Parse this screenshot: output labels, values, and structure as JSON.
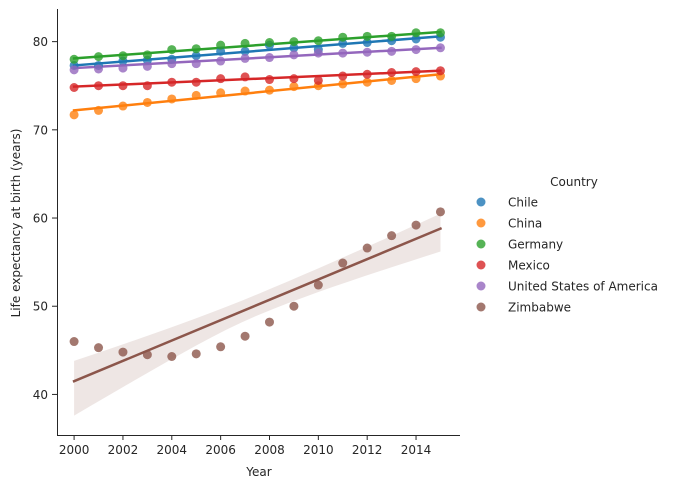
{
  "chart_data": {
    "type": "scatter",
    "xlabel": "Year",
    "ylabel": "Life expectancy at birth (years)",
    "xlim": [
      1999.3,
      2015.8
    ],
    "ylim": [
      35.4,
      83.7
    ],
    "xticks": [
      "2000",
      "2002",
      "2004",
      "2006",
      "2008",
      "2010",
      "2012",
      "2014"
    ],
    "yticks": [
      "40",
      "50",
      "60",
      "70",
      "80"
    ],
    "grid": false,
    "legend": {
      "title": "Country",
      "placement": "right"
    },
    "x": [
      2000,
      2001,
      2002,
      2003,
      2004,
      2005,
      2006,
      2007,
      2008,
      2009,
      2010,
      2011,
      2012,
      2013,
      2014,
      2015
    ],
    "series": [
      {
        "name": "Chile",
        "color": "#1f77b4",
        "values": [
          77.3,
          77.3,
          77.8,
          77.9,
          78.0,
          78.4,
          78.9,
          78.9,
          79.6,
          79.3,
          79.1,
          79.8,
          79.9,
          80.1,
          80.3,
          80.5
        ],
        "fit": [
          77.3,
          80.6
        ]
      },
      {
        "name": "China",
        "color": "#ff7f0e",
        "values": [
          71.7,
          72.2,
          72.7,
          73.1,
          73.5,
          73.9,
          74.2,
          74.4,
          74.5,
          74.9,
          75.0,
          75.2,
          75.4,
          75.6,
          75.8,
          76.1
        ],
        "fit": [
          72.2,
          76.3
        ]
      },
      {
        "name": "Germany",
        "color": "#2ca02c",
        "values": [
          78.0,
          78.3,
          78.4,
          78.5,
          79.1,
          79.2,
          79.6,
          79.8,
          79.9,
          80.0,
          80.1,
          80.5,
          80.6,
          80.6,
          81.0,
          81.0
        ],
        "fit": [
          78.1,
          81.1
        ]
      },
      {
        "name": "Mexico",
        "color": "#d62728",
        "values": [
          74.8,
          75.0,
          75.0,
          75.0,
          75.4,
          75.4,
          75.8,
          76.0,
          75.7,
          75.8,
          75.6,
          76.1,
          76.3,
          76.5,
          76.6,
          76.7
        ],
        "fit": [
          74.9,
          76.7
        ]
      },
      {
        "name": "United States of America",
        "color": "#9467bd",
        "values": [
          76.8,
          76.9,
          77.0,
          77.2,
          77.5,
          77.5,
          77.8,
          78.1,
          78.2,
          78.5,
          78.7,
          78.7,
          78.8,
          78.9,
          79.1,
          79.3
        ],
        "fit": [
          77.0,
          79.3
        ]
      },
      {
        "name": "Zimbabwe",
        "color": "#8c564b",
        "values": [
          46.0,
          45.3,
          44.8,
          44.5,
          44.3,
          44.6,
          45.4,
          46.6,
          48.2,
          50.0,
          52.4,
          54.9,
          56.6,
          58.0,
          59.2,
          60.7
        ],
        "fit": [
          41.5,
          58.8
        ],
        "ci_lower": [
          37.6,
          56.2
        ],
        "ci_upper": [
          43.8,
          60.5
        ]
      }
    ]
  }
}
